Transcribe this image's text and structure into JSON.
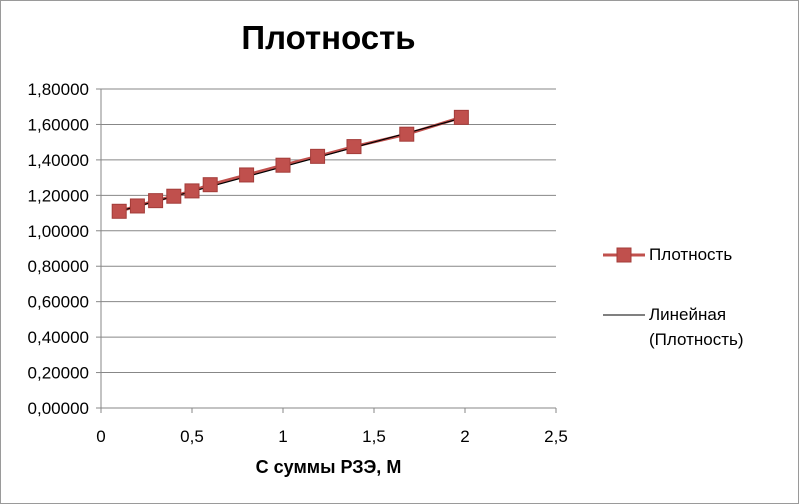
{
  "chart_data": {
    "type": "scatter",
    "title": "Плотность",
    "xlabel": "С суммы РЗЭ, М",
    "ylabel": "",
    "xlim": [
      0,
      2.5
    ],
    "ylim": [
      0,
      1.8
    ],
    "x_ticks": [
      "0",
      "0,5",
      "1",
      "1,5",
      "2",
      "2,5"
    ],
    "y_ticks": [
      "0,00000",
      "0,20000",
      "0,40000",
      "0,60000",
      "0,80000",
      "1,00000",
      "1,20000",
      "1,40000",
      "1,60000",
      "1,80000"
    ],
    "grid": "horizontal",
    "legend_position": "right",
    "series": [
      {
        "name": "Плотность",
        "color": "#c0504d",
        "marker": "square",
        "x": [
          0.1,
          0.2,
          0.3,
          0.4,
          0.5,
          0.6,
          0.8,
          1.0,
          1.19,
          1.39,
          1.68,
          1.98
        ],
        "y": [
          1.11,
          1.14,
          1.17,
          1.195,
          1.225,
          1.26,
          1.315,
          1.37,
          1.42,
          1.475,
          1.545,
          1.64
        ]
      }
    ],
    "trendline": {
      "name": "Линейная (Плотность)",
      "name_lines": [
        "Линейная",
        "(Плотность)"
      ],
      "type": "linear",
      "color": "#000000",
      "x": [
        0.1,
        1.98
      ],
      "y": [
        1.11,
        1.635
      ]
    }
  }
}
